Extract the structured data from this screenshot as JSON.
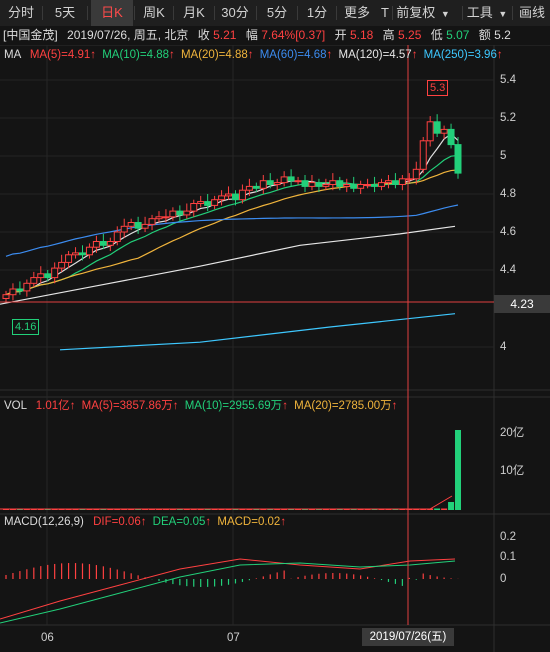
{
  "toolbar": {
    "tabs": [
      "分时",
      "5天",
      "日K",
      "周K",
      "月K",
      "30分",
      "5分",
      "1分",
      "更多"
    ],
    "more_marker": "T",
    "adjust": "前复权",
    "tools": "工具",
    "draw": "画线",
    "active_tab": "日K"
  },
  "info": {
    "name": "[中国金茂]",
    "date": "2019/07/26, 周五, 北京",
    "close_label": "收",
    "close": "5.21",
    "amp_label": "幅",
    "amp": "7.64%",
    "amp_delta": "[0.37]",
    "open_label": "开",
    "open": "5.18",
    "high_label": "高",
    "high": "5.25",
    "low_label": "低",
    "low": "5.07",
    "amount_label": "额",
    "amount": "5.2"
  },
  "ma_legend": {
    "title": "MA",
    "ma5": "MA(5)=4.91",
    "ma10": "MA(10)=4.88",
    "ma20": "MA(20)=4.88",
    "ma60": "MA(60)=4.68",
    "ma120": "MA(120)=4.57",
    "ma250": "MA(250)=3.96"
  },
  "price_axis": [
    "5.4",
    "5.2",
    "5",
    "4.8",
    "4.6",
    "4.4",
    "4"
  ],
  "current_price_tag": "4.23",
  "high_marker": "5.3",
  "low_marker": "4.16",
  "vol_legend": {
    "title": "VOL",
    "vol": "1.01亿",
    "ma5": "MA(5)=3857.86万",
    "ma10": "MA(10)=2955.69万",
    "ma20": "MA(20)=2785.00万"
  },
  "vol_axis": [
    "20亿",
    "10亿"
  ],
  "macd_legend": {
    "title": "MACD(12,26,9)",
    "dif": "DIF=0.06",
    "dea": "DEA=0.05",
    "macd": "MACD=0.02"
  },
  "macd_axis": [
    "0.2",
    "0.1",
    "0"
  ],
  "x_axis": [
    "06",
    "07"
  ],
  "crosshair_date": "2019/07/26(五)",
  "colors": {
    "up": "#ff4141",
    "down": "#22d07a",
    "ma5": "#e0e0e0",
    "ma10": "#22d07a",
    "ma20": "#f0b43c",
    "ma60": "#3c8cf0",
    "ma120": "#e6e6e6",
    "ma250": "#3ec8ff"
  }
}
